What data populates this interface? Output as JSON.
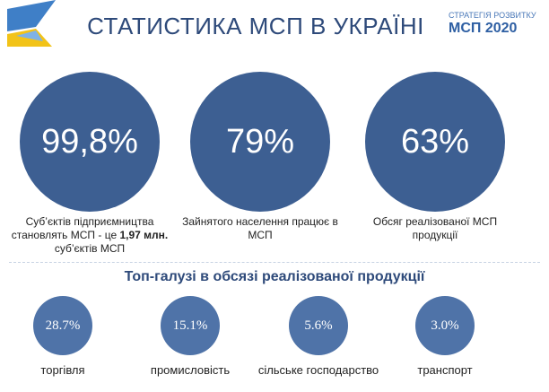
{
  "header": {
    "title": "СТАТИСТИКА МСП В УКРАЇНІ",
    "logo_line1": "СТРАТЕГІЯ РОЗВИТКУ",
    "logo_line2": "МСП 2020"
  },
  "stats": [
    {
      "value": "99,8%",
      "label": [
        "Суб’єктів підприємництва становлять МСП - це ",
        "1,97 млн.",
        " суб’єктів МСП"
      ]
    },
    {
      "value": "79%",
      "label": [
        "Зайнятого населення працює в МСП"
      ]
    },
    {
      "value": "63%",
      "label": [
        "Обсяг реалізованої МСП продукції"
      ]
    }
  ],
  "industries": {
    "title": "Топ-галузі в обсязі реалізованої продукції",
    "items": [
      {
        "value": "28.7%",
        "label": "торгівля"
      },
      {
        "value": "15.1%",
        "label": "промисловість"
      },
      {
        "value": "5.6%",
        "label": "сільське господарство"
      },
      {
        "value": "3.0%",
        "label": "транспорт"
      }
    ]
  }
}
